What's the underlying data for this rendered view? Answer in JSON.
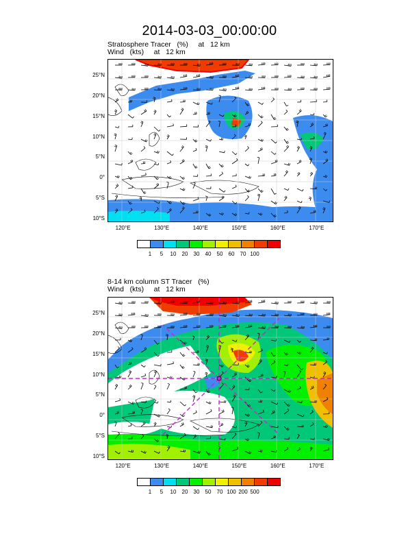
{
  "title": "2014-03-03_00:00:00",
  "panels": [
    {
      "label_line1": "Stratosphere Tracer   (%)     at   12 km",
      "label_line2": "Wind   (kts)     at   12 km",
      "colorbar_labels": [
        "1",
        "5",
        "10",
        "20",
        "30",
        "40",
        "50",
        "60",
        "70",
        "100"
      ],
      "colorbar_colors": [
        "#ffffff",
        "#3c8cf0",
        "#00e0f0",
        "#00c878",
        "#00f000",
        "#a0f000",
        "#f0f000",
        "#f0c000",
        "#f08000",
        "#f03c00",
        "#f00000"
      ]
    },
    {
      "label_line1": "8-14 km column ST Tracer   (%)",
      "label_line2": "Wind   (kts)     at   12 km",
      "colorbar_labels": [
        "1",
        "5",
        "10",
        "20",
        "30",
        "50",
        "70",
        "100",
        "200",
        "500"
      ],
      "colorbar_colors": [
        "#ffffff",
        "#3c8cf0",
        "#00e0f0",
        "#00c878",
        "#00f000",
        "#a0f000",
        "#f0f000",
        "#f0c000",
        "#f08000",
        "#f03c00",
        "#f00000"
      ]
    }
  ],
  "lat_labels": [
    "25°N",
    "20°N",
    "15°N",
    "10°N",
    "5°N",
    "0°",
    "5°S",
    "10°S"
  ],
  "lon_labels": [
    "120°E",
    "130°E",
    "140°E",
    "150°E",
    "160°E",
    "170°E"
  ],
  "map_extent": {
    "lon_min": 116,
    "lon_max": 174,
    "lat_min": -10.5,
    "lat_max": 29
  },
  "cross_section": {
    "center_lon": 145,
    "center_lat": 10,
    "color": "#d020d0"
  }
}
